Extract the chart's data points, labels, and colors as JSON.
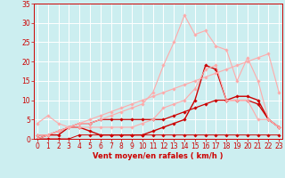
{
  "x": [
    0,
    1,
    2,
    3,
    4,
    5,
    6,
    7,
    8,
    9,
    10,
    11,
    12,
    13,
    14,
    15,
    16,
    17,
    18,
    19,
    20,
    21,
    22,
    23
  ],
  "lines": [
    {
      "y": [
        0,
        1,
        1,
        3,
        3,
        2,
        1,
        1,
        1,
        1,
        1,
        2,
        3,
        4,
        5,
        10,
        19,
        18,
        10,
        11,
        11,
        10,
        5,
        3
      ],
      "color": "#cc0000",
      "lw": 1.0
    },
    {
      "y": [
        0,
        0,
        0,
        0,
        1,
        1,
        1,
        1,
        1,
        1,
        1,
        1,
        1,
        1,
        1,
        1,
        1,
        1,
        1,
        1,
        1,
        1,
        1,
        1
      ],
      "color": "#cc0000",
      "lw": 0.7
    },
    {
      "y": [
        1,
        1,
        2,
        3,
        4,
        4,
        5,
        5,
        5,
        5,
        5,
        5,
        5,
        6,
        7,
        8,
        9,
        10,
        10,
        10,
        10,
        9,
        5,
        3
      ],
      "color": "#cc0000",
      "lw": 0.9
    },
    {
      "y": [
        4,
        6,
        4,
        3,
        3,
        3,
        3,
        3,
        3,
        3,
        4,
        5,
        8,
        9,
        10,
        13,
        18,
        19,
        10,
        10,
        10,
        5,
        5,
        3
      ],
      "color": "#ffaaaa",
      "lw": 0.8
    },
    {
      "y": [
        1,
        1,
        2,
        3,
        4,
        4,
        5,
        6,
        7,
        8,
        9,
        12,
        19,
        25,
        32,
        27,
        28,
        24,
        23,
        15,
        21,
        15,
        5,
        3
      ],
      "color": "#ffaaaa",
      "lw": 0.8
    },
    {
      "y": [
        0,
        1,
        2,
        3,
        4,
        5,
        6,
        7,
        8,
        9,
        10,
        11,
        12,
        13,
        14,
        15,
        16,
        17,
        18,
        19,
        20,
        21,
        22,
        12
      ],
      "color": "#ffaaaa",
      "lw": 0.8
    }
  ],
  "bg_color": "#cceef0",
  "grid_color": "#ffffff",
  "axis_color": "#cc0000",
  "xlabel": "Vent moyen/en rafales ( km/h )",
  "xlim": [
    -0.3,
    23.3
  ],
  "ylim": [
    0,
    35
  ],
  "yticks": [
    0,
    5,
    10,
    15,
    20,
    25,
    30,
    35
  ],
  "xticks": [
    0,
    1,
    2,
    3,
    4,
    5,
    6,
    7,
    8,
    9,
    10,
    11,
    12,
    13,
    14,
    15,
    16,
    17,
    18,
    19,
    20,
    21,
    22,
    23
  ],
  "tick_fontsize": 5.5,
  "xlabel_fontsize": 6.0
}
